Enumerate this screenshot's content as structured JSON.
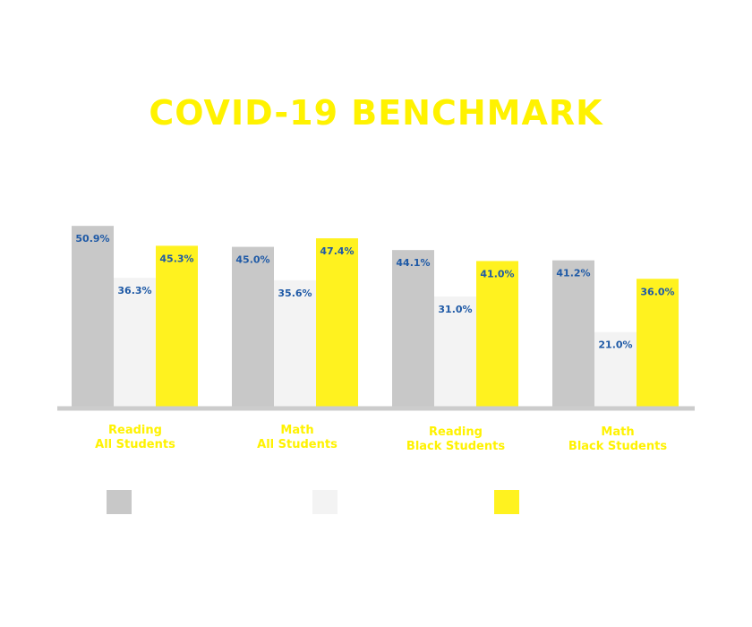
{
  "colors": {
    "title": "#fff200",
    "category_label": "#fff200",
    "value_label": "#1f5aa6",
    "axis": "#cccccc"
  },
  "chart_data": {
    "type": "bar",
    "title": "COVID-19 BENCHMARK",
    "categories": [
      [
        "Reading",
        "All Students"
      ],
      [
        "Math",
        "All Students"
      ],
      [
        "Reading",
        "Black Students"
      ],
      [
        "Math",
        "Black Students"
      ]
    ],
    "series": [
      {
        "color": "#c8c8c8",
        "values": [
          50.9,
          45.0,
          44.1,
          41.2
        ]
      },
      {
        "color": "#f3f3f3",
        "values": [
          36.3,
          35.6,
          31.0,
          21.0
        ]
      },
      {
        "color": "#fff21f",
        "values": [
          45.3,
          47.4,
          41.0,
          36.0
        ]
      }
    ],
    "value_suffix": "%",
    "ylim": [
      0,
      57
    ],
    "grid": false,
    "legend": {
      "placement": "bottom",
      "labels": [
        "",
        "",
        ""
      ]
    }
  }
}
